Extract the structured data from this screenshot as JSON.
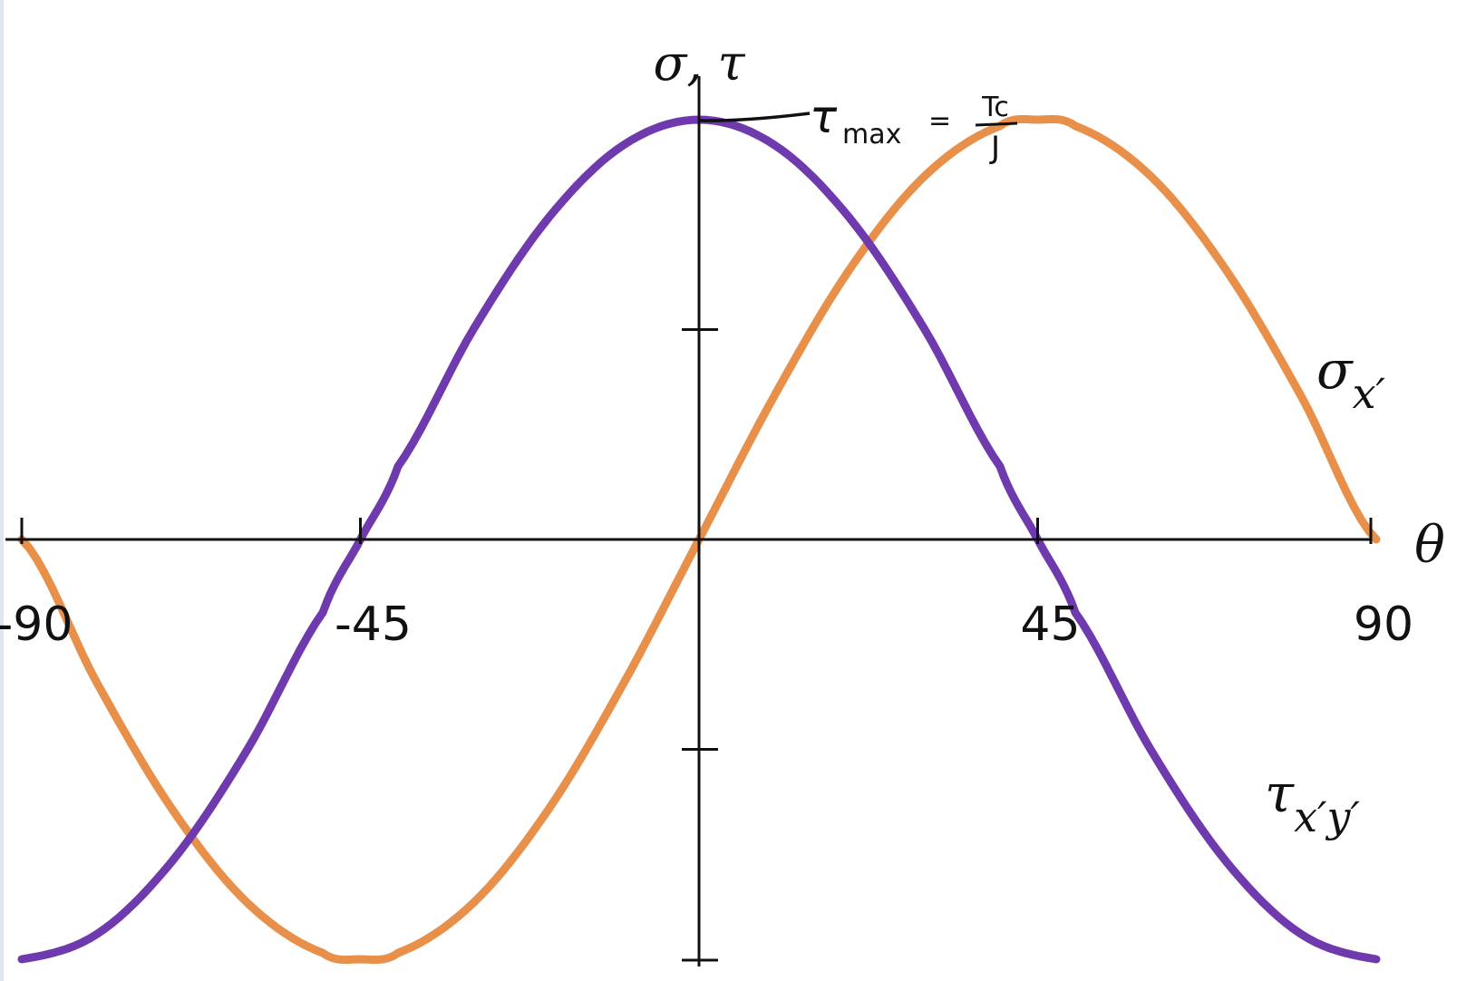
{
  "chart_data": {
    "type": "line",
    "x_axis_label": "θ",
    "y_axis_label": "σ, τ",
    "xlim": [
      -90,
      90
    ],
    "ylim": [
      -1,
      1
    ],
    "x_ticks": [
      {
        "value": -90,
        "label": "-90"
      },
      {
        "value": -45,
        "label": "-45"
      },
      {
        "value": 45,
        "label": "45"
      },
      {
        "value": 90,
        "label": "90"
      }
    ],
    "y_ticks": [
      0.5,
      -0.5,
      -1
    ],
    "grid": false,
    "series": [
      {
        "name": "σ x′",
        "color": "#E8904A",
        "x": [
          -90,
          -80,
          -70,
          -60,
          -50,
          -45,
          -40,
          -30,
          -20,
          -10,
          0,
          10,
          20,
          30,
          40,
          45,
          50,
          60,
          70,
          80,
          90
        ],
        "y": [
          0,
          -0.342,
          -0.643,
          -0.866,
          -0.985,
          -1,
          -0.985,
          -0.866,
          -0.643,
          -0.342,
          0,
          0.342,
          0.643,
          0.866,
          0.985,
          1,
          0.985,
          0.866,
          0.643,
          0.342,
          0
        ]
      },
      {
        "name": "τ x′y′",
        "color": "#6F3AAE",
        "x": [
          -90,
          -80,
          -70,
          -60,
          -50,
          -45,
          -40,
          -30,
          -20,
          -10,
          0,
          10,
          20,
          30,
          40,
          45,
          50,
          60,
          70,
          80,
          90
        ],
        "y": [
          -1,
          -0.94,
          -0.766,
          -0.5,
          -0.174,
          0,
          0.174,
          0.5,
          0.766,
          0.94,
          1,
          0.94,
          0.766,
          0.5,
          0.174,
          0,
          -0.174,
          -0.5,
          -0.766,
          -0.94,
          -1
        ]
      }
    ],
    "annotations": [
      {
        "text_main": "τ",
        "text_sub": "max",
        "text_eq": "=",
        "text_num": "Tc",
        "text_den": "J",
        "at_x": 0,
        "at_y": 1
      }
    ]
  }
}
